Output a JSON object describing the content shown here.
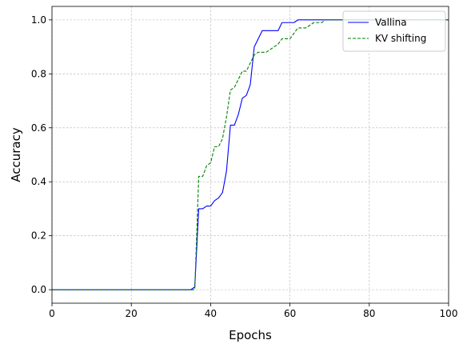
{
  "chart_data": {
    "type": "line",
    "title": "",
    "xlabel": "Epochs",
    "ylabel": "Accuracy",
    "xlim": [
      0,
      100
    ],
    "ylim": [
      -0.05,
      1.05
    ],
    "xticks": [
      0,
      20,
      40,
      60,
      80,
      100
    ],
    "yticks": [
      0.0,
      0.2,
      0.4,
      0.6,
      0.8,
      1.0
    ],
    "xtick_labels": [
      "0",
      "20",
      "40",
      "60",
      "80",
      "100"
    ],
    "ytick_labels": [
      "0.0",
      "0.2",
      "0.4",
      "0.6",
      "0.8",
      "1.0"
    ],
    "grid": true,
    "legend_position": "top-right",
    "series": [
      {
        "name": "Vallina",
        "color": "#0000ff",
        "linestyle": "solid",
        "x": [
          0,
          35,
          36,
          37,
          38,
          39,
          40,
          41,
          42,
          43,
          44,
          45,
          46,
          47,
          48,
          49,
          50,
          51,
          52,
          53,
          54,
          55,
          56,
          57,
          58,
          59,
          60,
          61,
          62,
          63,
          64,
          65,
          66,
          67,
          68,
          69,
          70,
          100
        ],
        "y": [
          0.0,
          0.0,
          0.01,
          0.3,
          0.3,
          0.31,
          0.31,
          0.33,
          0.34,
          0.36,
          0.44,
          0.61,
          0.61,
          0.65,
          0.71,
          0.72,
          0.76,
          0.9,
          0.93,
          0.96,
          0.96,
          0.96,
          0.96,
          0.96,
          0.99,
          0.99,
          0.99,
          0.99,
          1.0,
          1.0,
          1.0,
          1.0,
          1.0,
          1.0,
          1.0,
          1.0,
          1.0,
          1.0
        ]
      },
      {
        "name": "KV shifting",
        "color": "#008000",
        "linestyle": "dashed",
        "x": [
          0,
          35,
          36,
          37,
          38,
          39,
          40,
          41,
          42,
          43,
          44,
          45,
          46,
          47,
          48,
          49,
          50,
          51,
          52,
          53,
          54,
          55,
          56,
          57,
          58,
          59,
          60,
          61,
          62,
          63,
          64,
          65,
          66,
          67,
          68,
          69,
          70,
          100
        ],
        "y": [
          0.0,
          0.0,
          0.0,
          0.42,
          0.42,
          0.46,
          0.47,
          0.53,
          0.53,
          0.56,
          0.64,
          0.74,
          0.75,
          0.78,
          0.81,
          0.81,
          0.84,
          0.87,
          0.88,
          0.88,
          0.88,
          0.89,
          0.9,
          0.91,
          0.93,
          0.93,
          0.93,
          0.95,
          0.97,
          0.97,
          0.97,
          0.98,
          0.99,
          0.99,
          0.99,
          1.0,
          1.0,
          1.0
        ]
      }
    ]
  }
}
